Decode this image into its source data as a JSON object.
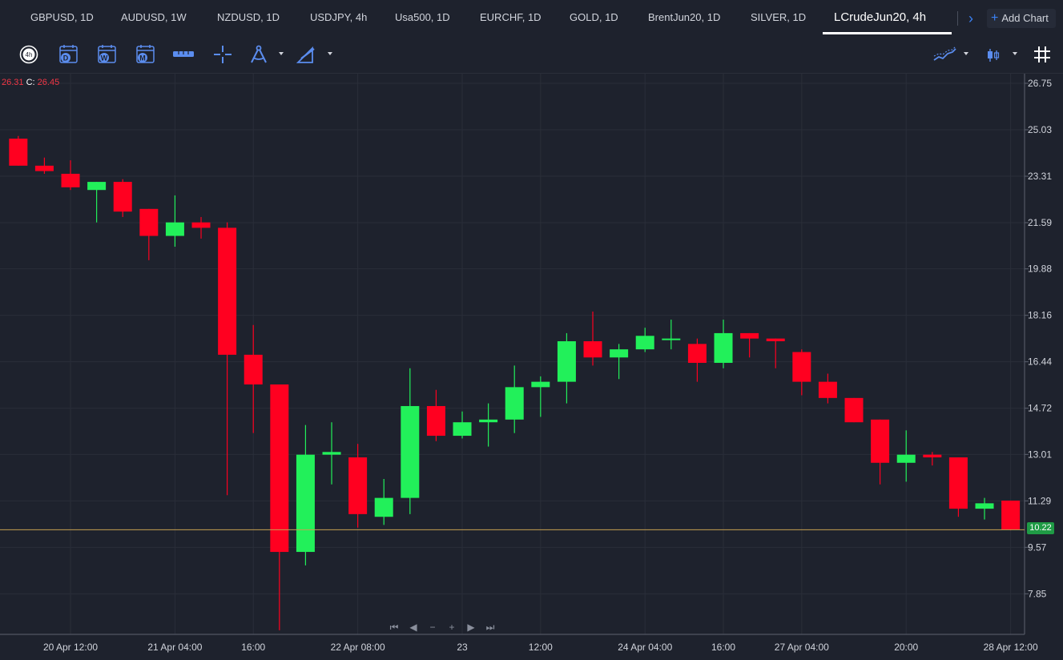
{
  "tabs": [
    {
      "label": "GBPUSD, 1D"
    },
    {
      "label": "AUDUSD, 1W"
    },
    {
      "label": "NZDUSD, 1D"
    },
    {
      "label": "USDJPY, 4h"
    },
    {
      "label": "Usa500, 1D"
    },
    {
      "label": "EURCHF, 1D"
    },
    {
      "label": "GOLD, 1D"
    },
    {
      "label": "BrentJun20, 1D"
    },
    {
      "label": "SILVER, 1D"
    },
    {
      "label": "LCrudeJun20, 4h"
    }
  ],
  "active_tab": "LCrudeJun20, 4h",
  "add_chart_label": "Add Chart",
  "toolbar": {
    "interval_badge": "4h",
    "period_buttons": [
      "D",
      "W",
      "M"
    ]
  },
  "legend": {
    "open_value": "26.31",
    "close_label": "C:",
    "close_value": "26.45"
  },
  "last_price": "10.22",
  "colors": {
    "background": "#1e222d",
    "grid": "#2a2e39",
    "up": "#22f05a",
    "down": "#ff0020",
    "accent": "#3b82f6",
    "last_price_line": "#c8a050",
    "last_price_tag": "#1f9b45"
  },
  "nav_controls": [
    "⏮",
    "◀",
    "−",
    "+",
    "▶",
    "⏭"
  ],
  "chart_data": {
    "type": "candlestick",
    "symbol": "LCrudeJun20",
    "interval": "4h",
    "y_ticks": [
      "26.75",
      "25.03",
      "23.31",
      "21.59",
      "19.88",
      "18.16",
      "16.44",
      "14.72",
      "13.01",
      "11.29",
      "9.57",
      "7.85"
    ],
    "x_ticks": [
      "20 Apr 12:00",
      "21 Apr 04:00",
      "16:00",
      "22 Apr 08:00",
      "23",
      "12:00",
      "24 Apr 04:00",
      "16:00",
      "27 Apr 04:00",
      "20:00",
      "28 Apr 12:00"
    ],
    "candles": [
      {
        "o": 24.7,
        "h": 24.8,
        "l": 23.7,
        "c": 23.7
      },
      {
        "o": 23.7,
        "h": 24.0,
        "l": 23.4,
        "c": 23.5
      },
      {
        "o": 23.4,
        "h": 23.9,
        "l": 22.8,
        "c": 22.9
      },
      {
        "o": 22.8,
        "h": 23.1,
        "l": 21.6,
        "c": 23.1
      },
      {
        "o": 23.1,
        "h": 23.2,
        "l": 21.8,
        "c": 22.0
      },
      {
        "o": 22.1,
        "h": 22.1,
        "l": 20.2,
        "c": 21.1
      },
      {
        "o": 21.1,
        "h": 22.6,
        "l": 20.7,
        "c": 21.6
      },
      {
        "o": 21.6,
        "h": 21.8,
        "l": 21.0,
        "c": 21.4
      },
      {
        "o": 21.4,
        "h": 21.6,
        "l": 11.5,
        "c": 16.7
      },
      {
        "o": 16.7,
        "h": 17.8,
        "l": 13.8,
        "c": 15.6
      },
      {
        "o": 15.6,
        "h": 15.6,
        "l": 6.5,
        "c": 9.4
      },
      {
        "o": 9.4,
        "h": 14.1,
        "l": 8.9,
        "c": 13.0
      },
      {
        "o": 13.0,
        "h": 14.2,
        "l": 11.9,
        "c": 13.1
      },
      {
        "o": 12.9,
        "h": 13.4,
        "l": 10.3,
        "c": 10.8
      },
      {
        "o": 10.7,
        "h": 12.1,
        "l": 10.4,
        "c": 11.4
      },
      {
        "o": 11.4,
        "h": 16.2,
        "l": 10.8,
        "c": 14.8
      },
      {
        "o": 14.8,
        "h": 15.4,
        "l": 13.5,
        "c": 13.7
      },
      {
        "o": 13.7,
        "h": 14.6,
        "l": 13.6,
        "c": 14.2
      },
      {
        "o": 14.2,
        "h": 14.9,
        "l": 13.3,
        "c": 14.3
      },
      {
        "o": 14.3,
        "h": 16.3,
        "l": 13.8,
        "c": 15.5
      },
      {
        "o": 15.5,
        "h": 15.9,
        "l": 14.4,
        "c": 15.7
      },
      {
        "o": 15.7,
        "h": 17.5,
        "l": 14.9,
        "c": 17.2
      },
      {
        "o": 17.2,
        "h": 18.3,
        "l": 16.3,
        "c": 16.6
      },
      {
        "o": 16.6,
        "h": 17.1,
        "l": 15.8,
        "c": 16.9
      },
      {
        "o": 16.9,
        "h": 17.7,
        "l": 16.8,
        "c": 17.4
      },
      {
        "o": 17.3,
        "h": 18.0,
        "l": 16.9,
        "c": 17.3
      },
      {
        "o": 17.1,
        "h": 17.3,
        "l": 15.7,
        "c": 16.4
      },
      {
        "o": 16.4,
        "h": 18.0,
        "l": 16.2,
        "c": 17.5
      },
      {
        "o": 17.5,
        "h": 17.5,
        "l": 16.6,
        "c": 17.3
      },
      {
        "o": 17.3,
        "h": 17.3,
        "l": 16.2,
        "c": 17.2
      },
      {
        "o": 16.8,
        "h": 16.9,
        "l": 15.2,
        "c": 15.7
      },
      {
        "o": 15.7,
        "h": 16.0,
        "l": 14.9,
        "c": 15.1
      },
      {
        "o": 15.1,
        "h": 15.1,
        "l": 14.2,
        "c": 14.2
      },
      {
        "o": 14.3,
        "h": 14.3,
        "l": 11.9,
        "c": 12.7
      },
      {
        "o": 12.7,
        "h": 13.9,
        "l": 12.0,
        "c": 13.0
      },
      {
        "o": 13.0,
        "h": 13.1,
        "l": 12.6,
        "c": 12.9
      },
      {
        "o": 12.9,
        "h": 12.9,
        "l": 10.7,
        "c": 11.0
      },
      {
        "o": 11.0,
        "h": 11.4,
        "l": 10.6,
        "c": 11.2
      },
      {
        "o": 11.3,
        "h": 11.3,
        "l": 10.2,
        "c": 10.22
      }
    ]
  }
}
